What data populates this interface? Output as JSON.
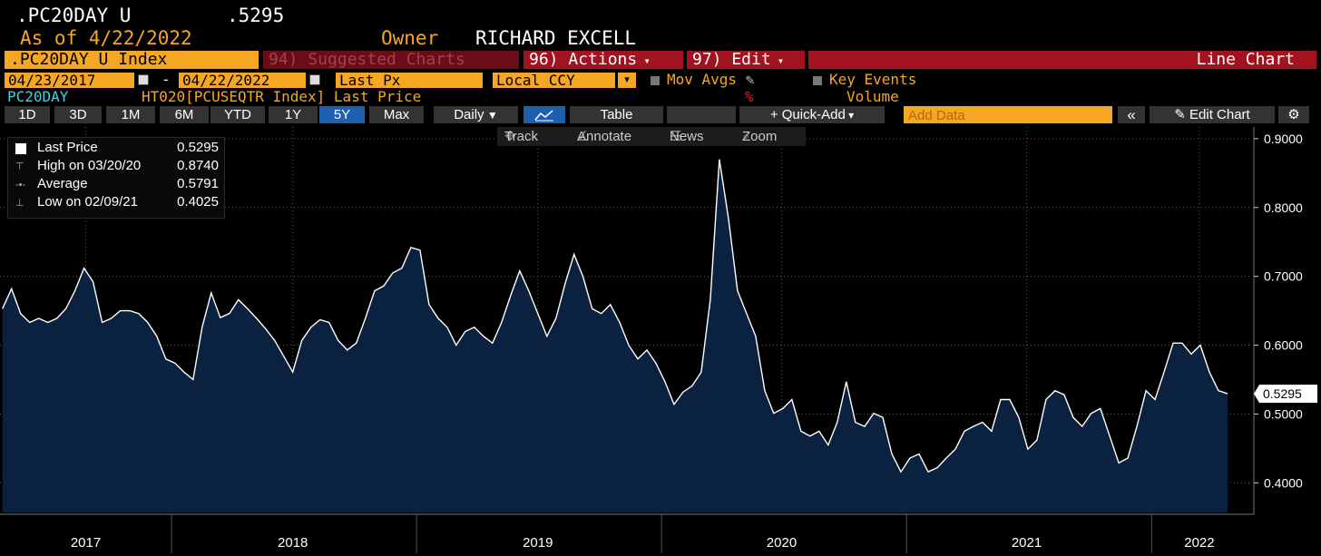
{
  "header": {
    "symbol": ".PC20DAY U",
    "price": ".5295",
    "as_of": "As of 4/22/2022",
    "owner_label": "Owner",
    "owner": "RICHARD EXCELL"
  },
  "toolbar": {
    "security": ".PC20DAY U Index",
    "suggested": "94) Suggested Charts",
    "actions": "96) Actions",
    "edit": "97) Edit",
    "chart_type": "Line Chart"
  },
  "controls": {
    "start": "04/23/2017",
    "dash": "-",
    "end": "04/22/2022",
    "field": "Last Px",
    "currency": "Local CCY",
    "mov_avgs": "Mov Avgs",
    "key_events": "Key Events"
  },
  "legend_row": {
    "ticker": "PC20DAY",
    "description": "HT020[PCUSEQTR Index] Last Price",
    "percent": "%",
    "volume": "Volume"
  },
  "periods": [
    "1D",
    "3D",
    "1M",
    "6M",
    "YTD",
    "1Y",
    "5Y",
    "Max"
  ],
  "selected_period": 6,
  "buttons": {
    "frequency": "Daily",
    "table": "Table",
    "quick_add": "+ Quick-Add",
    "add_data": "Add Data",
    "collapse": "«",
    "edit_chart": "Edit Chart"
  },
  "chart_tools": [
    "Track",
    "Annotate",
    "News",
    "Zoom"
  ],
  "chart_data": {
    "type": "area",
    "series": [
      {
        "name": "Last Price",
        "color": "#ffffff",
        "fill": "#0b2140",
        "x": [
          2017.31,
          2017.347,
          2017.384,
          2017.421,
          2017.458,
          2017.495,
          2017.532,
          2017.569,
          2017.606,
          2017.643,
          2017.68,
          2017.717,
          2017.754,
          2017.791,
          2017.829,
          2017.866,
          2017.903,
          2017.94,
          2017.977,
          2018.014,
          2018.051,
          2018.088,
          2018.125,
          2018.162,
          2018.199,
          2018.236,
          2018.273,
          2018.31,
          2018.347,
          2018.384,
          2018.421,
          2018.458,
          2018.495,
          2018.532,
          2018.569,
          2018.606,
          2018.643,
          2018.68,
          2018.717,
          2018.754,
          2018.791,
          2018.829,
          2018.866,
          2018.903,
          2018.94,
          2018.977,
          2019.014,
          2019.051,
          2019.088,
          2019.125,
          2019.162,
          2019.199,
          2019.236,
          2019.273,
          2019.31,
          2019.347,
          2019.384,
          2019.421,
          2019.458,
          2019.495,
          2019.532,
          2019.569,
          2019.606,
          2019.643,
          2019.68,
          2019.717,
          2019.754,
          2019.791,
          2019.829,
          2019.866,
          2019.903,
          2019.94,
          2019.977,
          2020.014,
          2020.051,
          2020.088,
          2020.125,
          2020.162,
          2020.199,
          2020.236,
          2020.273,
          2020.31,
          2020.347,
          2020.384,
          2020.421,
          2020.458,
          2020.495,
          2020.532,
          2020.569,
          2020.606,
          2020.643,
          2020.68,
          2020.717,
          2020.754,
          2020.791,
          2020.829,
          2020.866,
          2020.903,
          2020.94,
          2020.977,
          2021.014,
          2021.051,
          2021.088,
          2021.125,
          2021.162,
          2021.199,
          2021.236,
          2021.273,
          2021.31,
          2021.347,
          2021.384,
          2021.421,
          2021.458,
          2021.495,
          2021.532,
          2021.569,
          2021.606,
          2021.643,
          2021.68,
          2021.717,
          2021.754,
          2021.791,
          2021.829,
          2021.866,
          2021.903,
          2021.94,
          2021.977,
          2022.014,
          2022.051,
          2022.088,
          2022.125,
          2022.162,
          2022.199,
          2022.236,
          2022.273,
          2022.31
        ],
        "values": [
          0.653,
          0.682,
          0.646,
          0.633,
          0.639,
          0.633,
          0.639,
          0.653,
          0.679,
          0.712,
          0.692,
          0.633,
          0.639,
          0.65,
          0.65,
          0.646,
          0.633,
          0.613,
          0.58,
          0.574,
          0.561,
          0.55,
          0.626,
          0.676,
          0.64,
          0.646,
          0.666,
          0.653,
          0.639,
          0.624,
          0.607,
          0.584,
          0.561,
          0.607,
          0.626,
          0.637,
          0.633,
          0.607,
          0.593,
          0.603,
          0.639,
          0.679,
          0.686,
          0.705,
          0.712,
          0.742,
          0.738,
          0.659,
          0.639,
          0.626,
          0.6,
          0.62,
          0.626,
          0.613,
          0.603,
          0.633,
          0.672,
          0.708,
          0.679,
          0.646,
          0.613,
          0.639,
          0.689,
          0.732,
          0.699,
          0.653,
          0.646,
          0.659,
          0.633,
          0.6,
          0.58,
          0.593,
          0.574,
          0.547,
          0.514,
          0.532,
          0.541,
          0.561,
          0.666,
          0.87,
          0.784,
          0.679,
          0.646,
          0.613,
          0.534,
          0.501,
          0.508,
          0.521,
          0.475,
          0.468,
          0.475,
          0.455,
          0.488,
          0.547,
          0.488,
          0.482,
          0.501,
          0.495,
          0.442,
          0.416,
          0.436,
          0.442,
          0.416,
          0.422,
          0.436,
          0.449,
          0.475,
          0.482,
          0.488,
          0.475,
          0.521,
          0.521,
          0.495,
          0.449,
          0.462,
          0.521,
          0.534,
          0.528,
          0.495,
          0.482,
          0.501,
          0.508,
          0.468,
          0.429,
          0.436,
          0.482,
          0.534,
          0.521,
          0.561,
          0.603,
          0.603,
          0.587,
          0.6,
          0.561,
          0.534,
          0.5295
        ]
      }
    ],
    "last_label": "0.5295",
    "stats": [
      {
        "label": "High on 03/20/20",
        "value": "0.8740"
      },
      {
        "label": "Average",
        "value": "0.5791"
      },
      {
        "label": "Low on 02/09/21",
        "value": "0.4025"
      }
    ],
    "xlim": [
      2017.3,
      2022.41
    ],
    "xticks": [
      {
        "value": 2017.65,
        "label": "2017"
      },
      {
        "value": 2018.495,
        "label": "2018"
      },
      {
        "value": 2019.495,
        "label": "2019"
      },
      {
        "value": 2020.49,
        "label": "2020"
      },
      {
        "value": 2021.49,
        "label": "2021"
      },
      {
        "value": 2022.195,
        "label": "2022"
      }
    ],
    "ylim": [
      0.357,
      0.917
    ],
    "yticks": [
      {
        "value": 0.9,
        "label": "0.9000"
      },
      {
        "value": 0.8,
        "label": "0.8000"
      },
      {
        "value": 0.7,
        "label": "0.7000"
      },
      {
        "value": 0.6,
        "label": "0.6000"
      },
      {
        "value": 0.5,
        "label": "0.5000"
      },
      {
        "value": 0.4,
        "label": "0.4000"
      }
    ],
    "grid": true
  }
}
